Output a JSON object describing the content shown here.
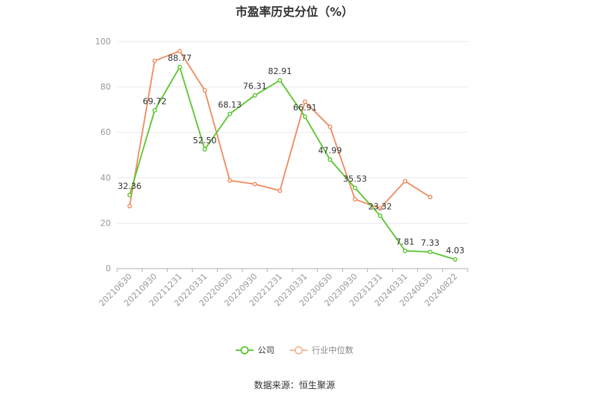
{
  "title": "市盈率历史分位（%）",
  "source": "数据来源：恒生聚源",
  "colors": {
    "company": "#5cc732",
    "industry": "#f08c60",
    "grid": "#e6e6ee",
    "axis": "#999999"
  },
  "chart_data": {
    "type": "line",
    "title": "市盈率历史分位（%）",
    "xlabel": "",
    "ylabel": "",
    "ylim": [
      0,
      100
    ],
    "yticks": [
      0,
      20,
      40,
      60,
      80,
      100
    ],
    "grid": true,
    "legend_position": "bottom",
    "x": [
      "20210630",
      "20210930",
      "20211231",
      "20220331",
      "20220630",
      "20220930",
      "20221231",
      "20230331",
      "20230630",
      "20230930",
      "20231231",
      "20240331",
      "20240630",
      "20240822"
    ],
    "series": [
      {
        "name": "公司",
        "values": [
          32.36,
          69.72,
          88.77,
          52.5,
          68.13,
          76.31,
          82.91,
          66.91,
          47.99,
          35.53,
          23.32,
          7.81,
          7.33,
          4.03
        ],
        "labels": [
          "32.36",
          "69.72",
          "88.77",
          "52.50",
          "68.13",
          "76.31",
          "82.91",
          "66.91",
          "47.99",
          "35.53",
          "23.32",
          "7.81",
          "7.33",
          "4.03"
        ]
      },
      {
        "name": "行业中位数",
        "values": [
          27.5,
          91.5,
          95.8,
          78.5,
          38.8,
          37.2,
          34.3,
          73.5,
          62.5,
          30.5,
          26.5,
          38.5,
          31.5,
          null
        ]
      }
    ]
  }
}
